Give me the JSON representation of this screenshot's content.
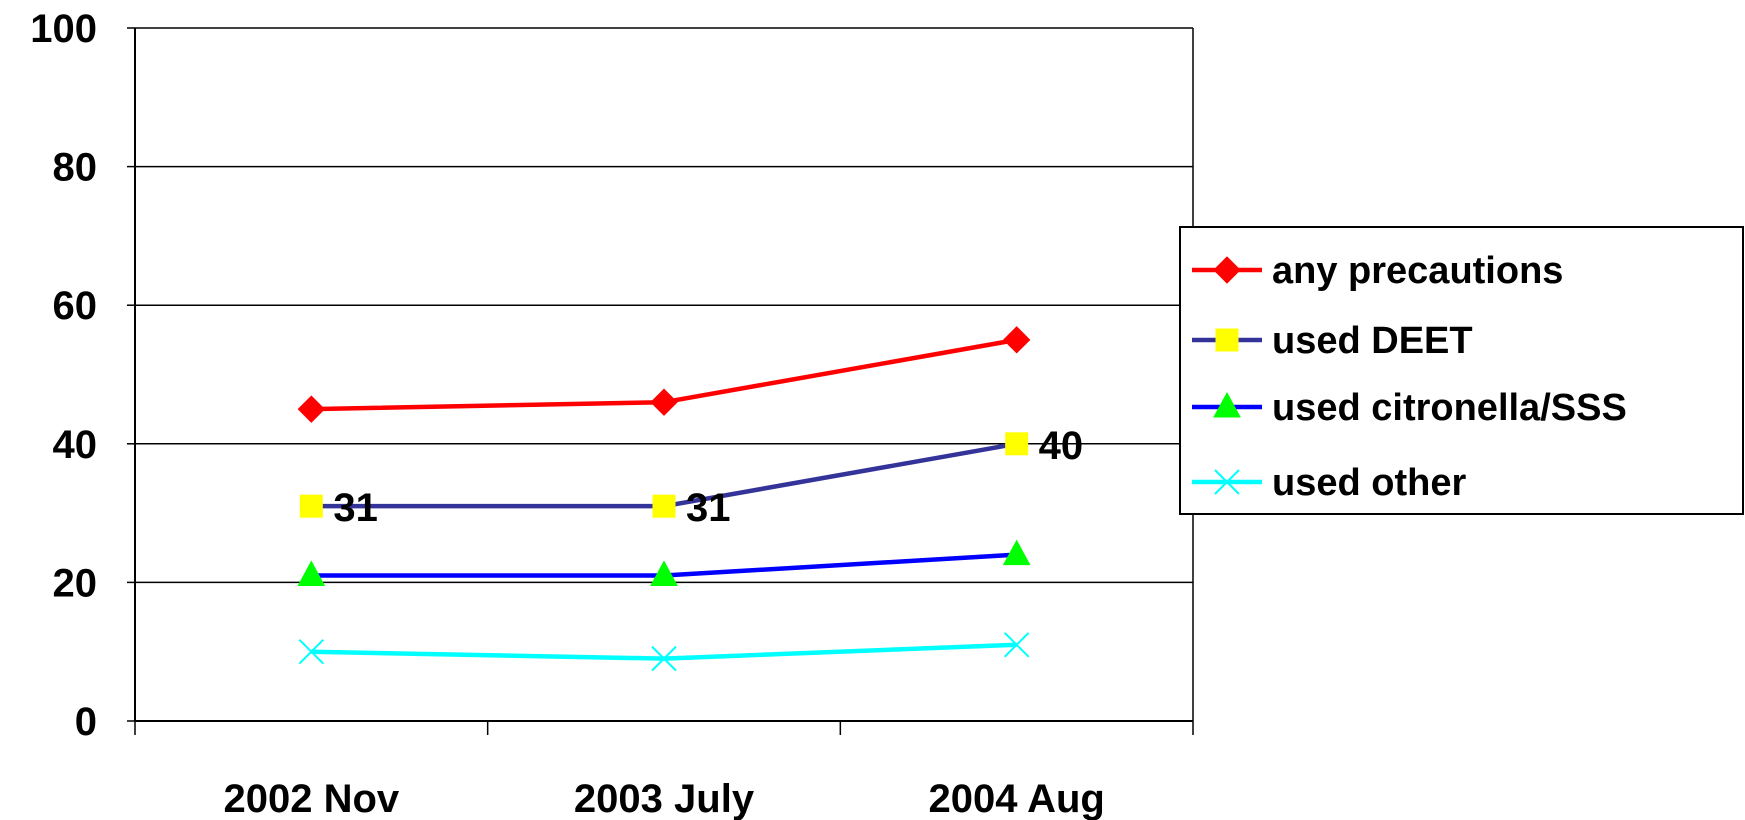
{
  "chart_data": {
    "type": "line",
    "categories": [
      "2002 Nov",
      "2003 July",
      "2004 Aug"
    ],
    "ylim": [
      0,
      100
    ],
    "yticks": [
      0,
      20,
      40,
      60,
      80,
      100
    ],
    "grid": true,
    "legend_position": "right",
    "series": [
      {
        "name": "any precautions",
        "values": [
          45,
          46,
          55
        ],
        "color": "#ff0000",
        "marker": "diamond",
        "labels": []
      },
      {
        "name": "used DEET",
        "values": [
          31,
          31,
          40
        ],
        "color": "#333399",
        "marker": "square",
        "marker_color": "#ffff00",
        "labels": [
          "31",
          "31",
          "40"
        ]
      },
      {
        "name": "used citronella/SSS",
        "values": [
          21,
          21,
          24
        ],
        "color": "#0000ff",
        "marker": "triangle",
        "marker_color": "#00ff00",
        "labels": []
      },
      {
        "name": "used other",
        "values": [
          10,
          9,
          11
        ],
        "color": "#00ffff",
        "marker": "x",
        "labels": []
      }
    ]
  }
}
